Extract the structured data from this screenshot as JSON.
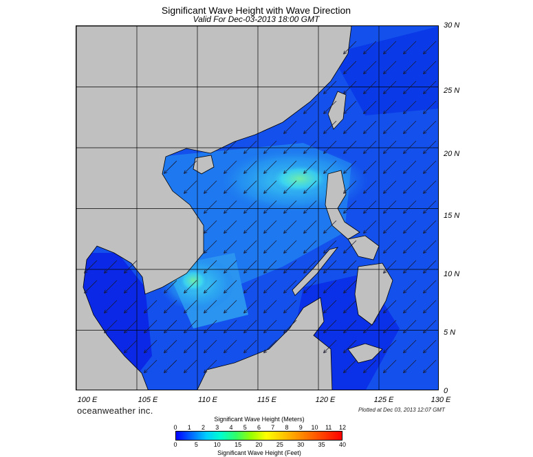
{
  "map": {
    "title": "Significant Wave Height with Wave Direction",
    "subtitle": "Valid For Dec-03-2013 18:00 GMT",
    "lat_labels": [
      "30 N",
      "25 N",
      "20 N",
      "15 N",
      "10 N",
      "5 N",
      "0"
    ],
    "lon_labels": [
      "100 E",
      "105 E",
      "110 E",
      "115 E",
      "120 E",
      "125 E",
      "130 E"
    ],
    "extent": {
      "lon_min": 100,
      "lon_max": 130,
      "lat_min": 0,
      "lat_max": 30
    },
    "gridlines": {
      "lon": [
        105,
        110,
        115,
        120,
        125
      ],
      "lat": [
        5,
        10,
        15,
        20,
        25
      ]
    },
    "wave_direction": "northeast swell, arrows pointing toward the southwest",
    "colors": {
      "land": "#c0c0c0",
      "sea_low": "#0a28e6",
      "sea_mid": "#1e78f0",
      "sea_high": "#3cdcf0",
      "sea_peak": "#7af09a",
      "arrows": "#1a1a2e",
      "grid": "#000000"
    }
  },
  "brand": "oceanweather inc.",
  "plotted": "Plotted at Dec 03, 2013 12:07 GMT",
  "colorbar": {
    "title_meters": "Significant Wave Height (Meters)",
    "title_feet": "Significant Wave Height (Feet)",
    "ticks_meters": [
      "0",
      "1",
      "2",
      "3",
      "4",
      "5",
      "6",
      "7",
      "8",
      "9",
      "10",
      "11",
      "12"
    ],
    "ticks_feet": [
      "0",
      "5",
      "10",
      "15",
      "20",
      "25",
      "30",
      "35",
      "40"
    ],
    "colors": [
      "#0000ff",
      "#0066ff",
      "#00ccff",
      "#00ffcc",
      "#33ff66",
      "#99ff00",
      "#ffff00",
      "#ffcc00",
      "#ff9900",
      "#ff6600",
      "#ff3300",
      "#ff0000"
    ]
  }
}
